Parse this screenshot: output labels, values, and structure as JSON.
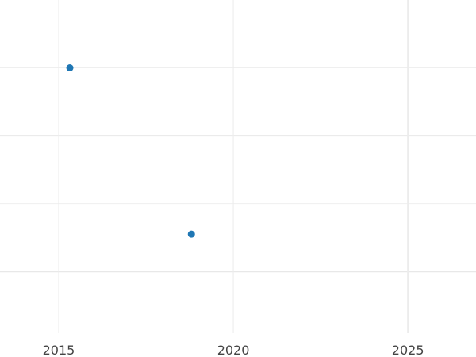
{
  "chart_data": {
    "type": "scatter",
    "title": "",
    "xlabel": "",
    "ylabel": "",
    "xlim": [
      2013.32,
      2026.95
    ],
    "ylim": [
      -0.63,
      2.0
    ],
    "x_ticks": [
      2015,
      2020,
      2025
    ],
    "x_tick_labels": [
      "2015",
      "2020",
      "2025"
    ],
    "y_major_grid": [
      0,
      1
    ],
    "y_minor_grid": [
      0.5,
      1.5
    ],
    "grid": true,
    "marker_color": "#1f77b4",
    "points": [
      {
        "x": 2015.32,
        "y": 1.5
      },
      {
        "x": 2018.8,
        "y": 0.275
      }
    ]
  }
}
